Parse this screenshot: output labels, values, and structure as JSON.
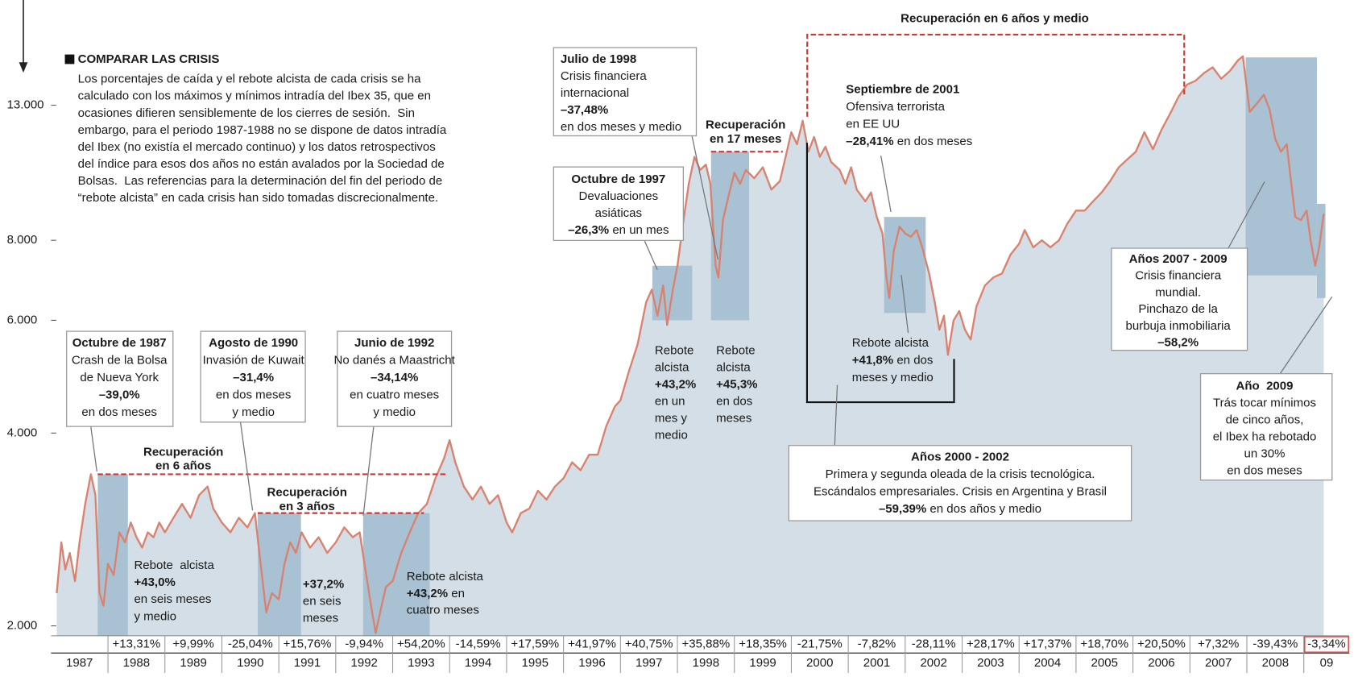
{
  "chart_data": {
    "type": "line",
    "yscale": "log",
    "xlim": [
      1987.0,
      2009.8
    ],
    "ylim": [
      1930,
      16500
    ],
    "yticks": [
      {
        "value": 2000,
        "label": "2.000"
      },
      {
        "value": 4000,
        "label": "4.000"
      },
      {
        "value": 6000,
        "label": "6.000"
      },
      {
        "value": 8000,
        "label": "8.000"
      },
      {
        "value": 13000,
        "label": "13.000"
      }
    ],
    "xticks": [
      1988,
      1989,
      1990,
      1991,
      1992,
      1993,
      1994,
      1995,
      1996,
      1997,
      1998,
      1999,
      2000,
      2001,
      2002,
      2003,
      2004,
      2005,
      2006,
      2007,
      2008,
      2009
    ],
    "categories": [
      "1987",
      "1988",
      "1989",
      "1990",
      "1991",
      "1992",
      "1993",
      "1994",
      "1995",
      "1996",
      "1997",
      "1998",
      "1999",
      "2000",
      "2001",
      "2002",
      "2003",
      "2004",
      "2005",
      "2006",
      "2007",
      "2008",
      "09"
    ],
    "annual_returns": {
      "values": [
        null,
        13.31,
        9.99,
        -25.04,
        15.76,
        -9.94,
        54.2,
        -14.59,
        17.59,
        41.97,
        40.75,
        35.88,
        18.35,
        -21.75,
        -7.82,
        -28.11,
        28.17,
        17.37,
        18.7,
        20.5,
        7.32,
        -39.43,
        -3.34
      ],
      "value_labels": [
        null,
        "+13,31%",
        "+9,99%",
        "-25,04%",
        "+15,76%",
        "-9,94%",
        "+54,20%",
        "-14,59%",
        "+17,59%",
        "+41,97%",
        "+40,75%",
        "+35,88%",
        "+18,35%",
        "-21,75%",
        "-7,82%",
        "-28,11%",
        "+28,17%",
        "+17,37%",
        "+18,70%",
        "+20,50%",
        "+7,32%",
        "-39,43%",
        "-3,34%"
      ]
    },
    "series": [
      {
        "color": "#d9826f",
        "x": [
          1987.1,
          1987.18,
          1987.25,
          1987.33,
          1987.42,
          1987.5,
          1987.6,
          1987.7,
          1987.78,
          1987.85,
          1987.92,
          1988.0,
          1988.1,
          1988.2,
          1988.3,
          1988.4,
          1988.5,
          1988.6,
          1988.7,
          1988.8,
          1988.9,
          1989.0,
          1989.15,
          1989.3,
          1989.45,
          1989.6,
          1989.75,
          1989.85,
          1990.0,
          1990.15,
          1990.3,
          1990.45,
          1990.58,
          1990.68,
          1990.78,
          1990.88,
          1991.0,
          1991.1,
          1991.2,
          1991.3,
          1991.4,
          1991.55,
          1991.7,
          1991.85,
          1992.0,
          1992.15,
          1992.3,
          1992.42,
          1992.52,
          1992.62,
          1992.7,
          1992.78,
          1992.88,
          1993.0,
          1993.15,
          1993.3,
          1993.45,
          1993.6,
          1993.75,
          1993.9,
          1994.0,
          1994.1,
          1994.25,
          1994.4,
          1994.55,
          1994.7,
          1994.85,
          1995.0,
          1995.1,
          1995.25,
          1995.4,
          1995.55,
          1995.7,
          1995.85,
          1996.0,
          1996.15,
          1996.3,
          1996.45,
          1996.6,
          1996.75,
          1996.9,
          1997.0,
          1997.15,
          1997.3,
          1997.45,
          1997.55,
          1997.65,
          1997.75,
          1997.82,
          1997.92,
          1998.0,
          1998.1,
          1998.2,
          1998.3,
          1998.4,
          1998.5,
          1998.58,
          1998.67,
          1998.72,
          1998.8,
          1998.9,
          1999.0,
          1999.1,
          1999.2,
          1999.35,
          1999.5,
          1999.65,
          1999.8,
          1999.9,
          2000.0,
          2000.1,
          2000.2,
          2000.3,
          2000.4,
          2000.5,
          2000.6,
          2000.7,
          2000.85,
          2000.95,
          2001.05,
          2001.15,
          2001.3,
          2001.4,
          2001.5,
          2001.6,
          2001.67,
          2001.72,
          2001.8,
          2001.9,
          2002.0,
          2002.1,
          2002.2,
          2002.3,
          2002.42,
          2002.52,
          2002.6,
          2002.68,
          2002.75,
          2002.85,
          2002.95,
          2003.05,
          2003.15,
          2003.25,
          2003.4,
          2003.55,
          2003.7,
          2003.85,
          2004.0,
          2004.1,
          2004.25,
          2004.4,
          2004.55,
          2004.7,
          2004.85,
          2005.0,
          2005.15,
          2005.3,
          2005.45,
          2005.6,
          2005.75,
          2005.9,
          2006.05,
          2006.2,
          2006.35,
          2006.5,
          2006.65,
          2006.8,
          2006.95,
          2007.1,
          2007.25,
          2007.4,
          2007.55,
          2007.7,
          2007.85,
          2007.93,
          2008.0,
          2008.05,
          2008.15,
          2008.3,
          2008.4,
          2008.5,
          2008.6,
          2008.7,
          2008.78,
          2008.85,
          2008.95,
          2009.05,
          2009.12,
          2009.2,
          2009.27,
          2009.35
        ],
        "values": [
          2250,
          2700,
          2450,
          2600,
          2350,
          2700,
          3100,
          3450,
          3200,
          2250,
          2150,
          2500,
          2400,
          2800,
          2700,
          2900,
          2750,
          2650,
          2800,
          2750,
          2900,
          2800,
          2950,
          3100,
          2950,
          3200,
          3300,
          3050,
          2900,
          2800,
          2950,
          2850,
          3000,
          2500,
          2100,
          2250,
          2200,
          2500,
          2700,
          2600,
          2800,
          2650,
          2750,
          2600,
          2700,
          2850,
          2750,
          2800,
          2450,
          2150,
          1950,
          2100,
          2300,
          2350,
          2600,
          2800,
          3000,
          3100,
          3400,
          3650,
          3900,
          3600,
          3300,
          3150,
          3300,
          3100,
          3200,
          2900,
          2800,
          3000,
          3050,
          3250,
          3150,
          3300,
          3400,
          3600,
          3500,
          3700,
          3700,
          4100,
          4400,
          4500,
          5000,
          5500,
          6400,
          6700,
          6100,
          6800,
          5900,
          6700,
          7300,
          8500,
          9800,
          10800,
          10300,
          10500,
          9800,
          7300,
          7000,
          8600,
          9400,
          10200,
          9800,
          10300,
          10000,
          10400,
          9600,
          9900,
          10800,
          11800,
          11300,
          12300,
          11000,
          11600,
          10800,
          11200,
          10600,
          10300,
          9800,
          10400,
          9600,
          9200,
          9500,
          8700,
          8200,
          7000,
          6500,
          7700,
          8400,
          8200,
          8100,
          8300,
          7800,
          7100,
          6400,
          5800,
          6100,
          5300,
          6000,
          6200,
          5800,
          5600,
          6300,
          6800,
          7000,
          7100,
          7600,
          7900,
          8300,
          7800,
          8000,
          7800,
          8000,
          8500,
          8900,
          8900,
          9200,
          9500,
          9900,
          10400,
          10700,
          11000,
          11800,
          11100,
          11900,
          12600,
          13400,
          14000,
          14200,
          14600,
          14900,
          14300,
          14700,
          15300,
          15500,
          13800,
          12700,
          13000,
          13500,
          12800,
          11500,
          11000,
          11300,
          9800,
          8700,
          8600,
          8900,
          8000,
          7300,
          7800,
          8800
        ]
      }
    ],
    "area_color": "#d3dee6",
    "period_color": "#a8c2d3",
    "recovery_color": "#d9342b",
    "periods": [
      {
        "x": [
          1987.82,
          1988.35
        ],
        "y": [
          1930,
          3450
        ]
      },
      {
        "x": [
          1990.63,
          1991.39
        ],
        "y": [
          1930,
          3000
        ]
      },
      {
        "x": [
          1992.48,
          1993.65
        ],
        "y": [
          1930,
          3000
        ]
      },
      {
        "x": [
          1997.56,
          1998.26
        ],
        "y": [
          6000,
          7300
        ]
      },
      {
        "x": [
          1998.59,
          1999.26
        ],
        "y": [
          6000,
          11000
        ]
      },
      {
        "x": [
          2001.63,
          2002.36
        ],
        "y": [
          6160,
          8700
        ]
      },
      {
        "x": [
          2007.98,
          2009.23
        ],
        "y": [
          7050,
          15440
        ]
      },
      {
        "x": [
          2009.23,
          2009.38
        ],
        "y": [
          6500,
          9120
        ]
      }
    ],
    "recoveries": [
      {
        "lines": [
          "Recuperación",
          "en 6 años"
        ],
        "level": 3450,
        "x": [
          1987.82,
          1993.96
        ]
      },
      {
        "lines": [
          "Recuperación",
          "en 3 años"
        ],
        "level": 3000,
        "x": [
          1990.63,
          1993.55
        ]
      },
      {
        "lines": [
          "Recuperación",
          "en 17 meses"
        ],
        "level": 11000,
        "x": [
          1998.59,
          1999.85
        ]
      },
      {
        "lines": [
          "Recuperación en 6 años y medio"
        ],
        "x": [
          2000.28,
          2006.9
        ]
      }
    ],
    "intro": {
      "title": "COMPARAR LAS CRISIS",
      "lines": [
        "Los porcentajes de caída y el rebote alcista de cada crisis se ha",
        "calculado con los máximos y mínimos intradía del Ibex 35, que en",
        "ocasiones difieren sensiblemente de los cierres de sesión.  Sin",
        "embargo, para el periodo 1987-1988 no se dispone de datos intradía",
        "del Ibex (no existía el mercado continuo) y los datos retrospectivos",
        "del índice para esos dos años no están avalados por la Sociedad de",
        "Bolsas.  Las referencias para la determinación del fin del periodo de",
        "“rebote alcista” en cada crisis han sido tomadas discrecionalmente."
      ]
    },
    "annotations": [
      {
        "lines": [
          {
            "bold": "Octubre de 1987"
          },
          "Crash de la Bolsa",
          "de Nueva York",
          {
            "bold": "–39,0%"
          },
          "en dos meses"
        ]
      },
      {
        "lines": [
          {
            "bold": "Agosto de 1990"
          },
          "Invasión de Kuwait",
          {
            "bold": "–31,4%"
          },
          "en dos meses",
          "y medio"
        ]
      },
      {
        "lines": [
          {
            "bold": "Junio de 1992"
          },
          "No danés a Maastricht",
          {
            "bold": "–34,14%"
          },
          "en cuatro meses",
          "y medio"
        ]
      },
      {
        "lines": [
          {
            "bold": "Julio de 1998"
          },
          "Crisis financiera",
          "internacional",
          {
            "bold": "–37,48%"
          },
          "en dos meses y medio"
        ]
      },
      {
        "lines": [
          {
            "bold": "Octubre de 1997"
          },
          "Devaluaciones",
          "asiáticas",
          [
            {
              "bold": "–26,3%"
            },
            " en un mes"
          ]
        ]
      },
      {
        "lines": [
          {
            "bold": "Septiembre de 2001"
          },
          "Ofensiva terrorista",
          "en EE UU",
          [
            {
              "bold": "–28,41%"
            },
            " en dos meses"
          ]
        ]
      },
      {
        "lines": [
          {
            "bold": "Años 2007 - 2009"
          },
          "Crisis financiera",
          "mundial.",
          "Pinchazo de la",
          "burbuja inmobiliaria",
          {
            "bold": "–58,2%"
          }
        ]
      },
      {
        "lines": [
          {
            "bold": "Año  2009"
          },
          "Trás tocar mínimos",
          "de cinco años,",
          "el Ibex ha rebotado",
          "un 30%",
          "en dos meses"
        ]
      },
      {
        "lines": [
          {
            "bold": "Años 2000 - 2002"
          },
          "Primera y segunda oleada de la crisis tecnológica.",
          "Escándalos empresariales. Crisis en Argentina y Brasil",
          [
            {
              "bold": "–59,39%"
            },
            " en dos años y medio"
          ]
        ]
      },
      {
        "lines": [
          "Rebote  alcista",
          {
            "bold": "+43,0%"
          },
          "en seis meses",
          "y medio"
        ]
      },
      {
        "lines": [
          {
            "bold": "+37,2%"
          },
          "en seis",
          "meses"
        ]
      },
      {
        "lines": [
          "Rebote alcista",
          [
            {
              "bold": "+43,2%"
            },
            " en"
          ],
          "cuatro meses"
        ]
      },
      {
        "lines": [
          "Rebote",
          "alcista",
          {
            "bold": "+43,2%"
          },
          "en un",
          "mes y",
          "medio"
        ]
      },
      {
        "lines": [
          "Rebote",
          "alcista",
          {
            "bold": "+45,3%"
          },
          "en dos",
          "meses"
        ]
      },
      {
        "lines": [
          "Rebote alcista",
          [
            {
              "bold": "+41,8%"
            },
            " en dos"
          ],
          "meses y medio"
        ]
      }
    ]
  }
}
